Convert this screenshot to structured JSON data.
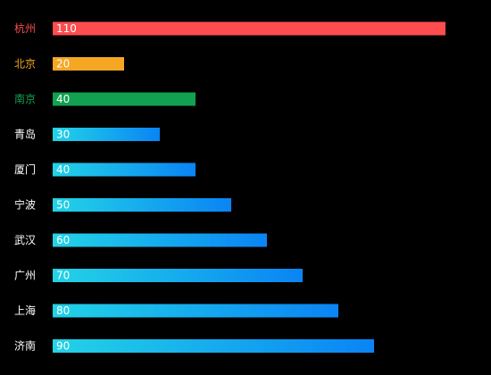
{
  "chart_data": {
    "type": "bar",
    "orientation": "horizontal",
    "categories": [
      "杭州",
      "北京",
      "南京",
      "青岛",
      "厦门",
      "宁波",
      "武汉",
      "广州",
      "上海",
      "济南"
    ],
    "values": [
      110,
      20,
      40,
      30,
      40,
      50,
      60,
      70,
      80,
      90
    ],
    "xlim": [
      0,
      110
    ],
    "grid": false,
    "legend": "none",
    "label_colors": [
      "#ff4d4f",
      "#f5a623",
      "#12a150",
      "#ffffff",
      "#ffffff",
      "#ffffff",
      "#ffffff",
      "#ffffff",
      "#ffffff",
      "#ffffff"
    ],
    "bar_fills": [
      "#ff4d4f",
      "#f5a623",
      "#12a150",
      "gradient",
      "gradient",
      "gradient",
      "gradient",
      "gradient",
      "gradient",
      "gradient"
    ],
    "gradient": {
      "start": "#22d3e6",
      "end": "#0a84f5"
    },
    "value_label_color": "#ffffff",
    "background": "#000000"
  }
}
